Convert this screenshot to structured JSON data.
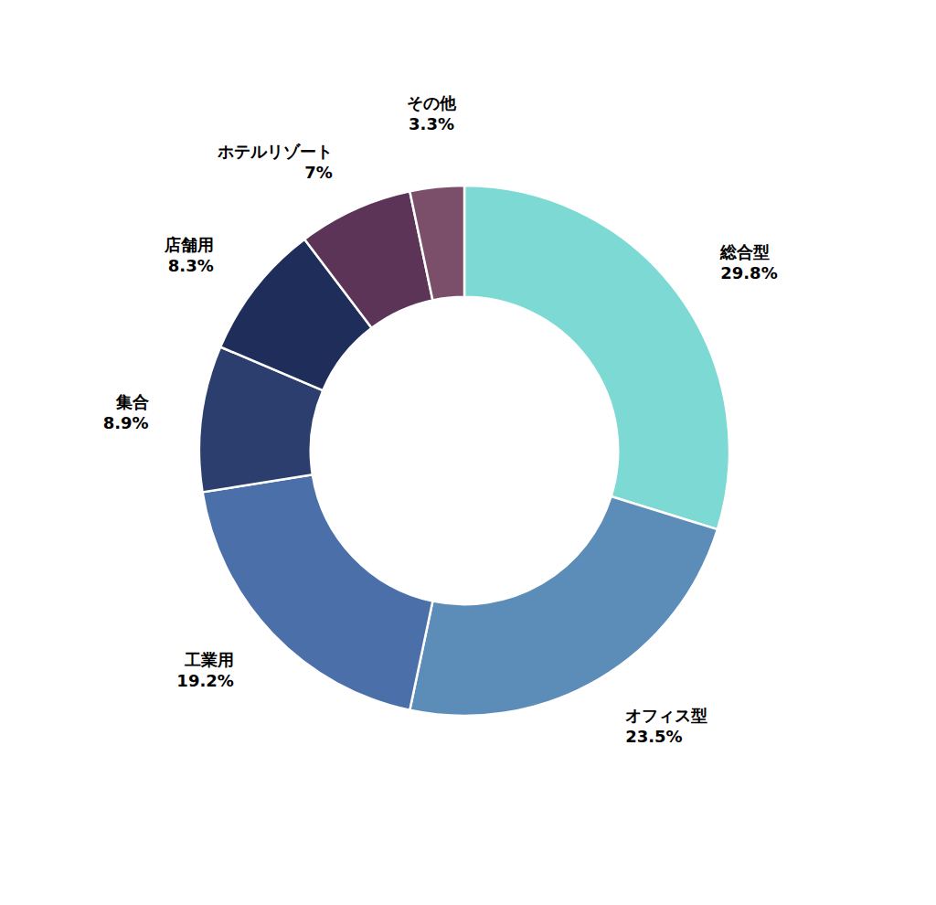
{
  "chart_data": {
    "type": "pie",
    "categories": [
      "総合型",
      "オフィス型",
      "工業用",
      "集合",
      "店舗用",
      "ホテルリゾート",
      "その他"
    ],
    "values": [
      29.8,
      23.5,
      19.2,
      8.9,
      8.3,
      7.0,
      3.3
    ],
    "value_labels": [
      "29.8%",
      "23.5%",
      "19.2%",
      "8.9%",
      "8.3%",
      "7%",
      "3.3%"
    ],
    "colors": [
      "#7DD9D3",
      "#5B8DB8",
      "#4B6FA8",
      "#2C3E6E",
      "#1E2D5A",
      "#5C3458",
      "#7B4F6A"
    ],
    "data_labels": true
  }
}
